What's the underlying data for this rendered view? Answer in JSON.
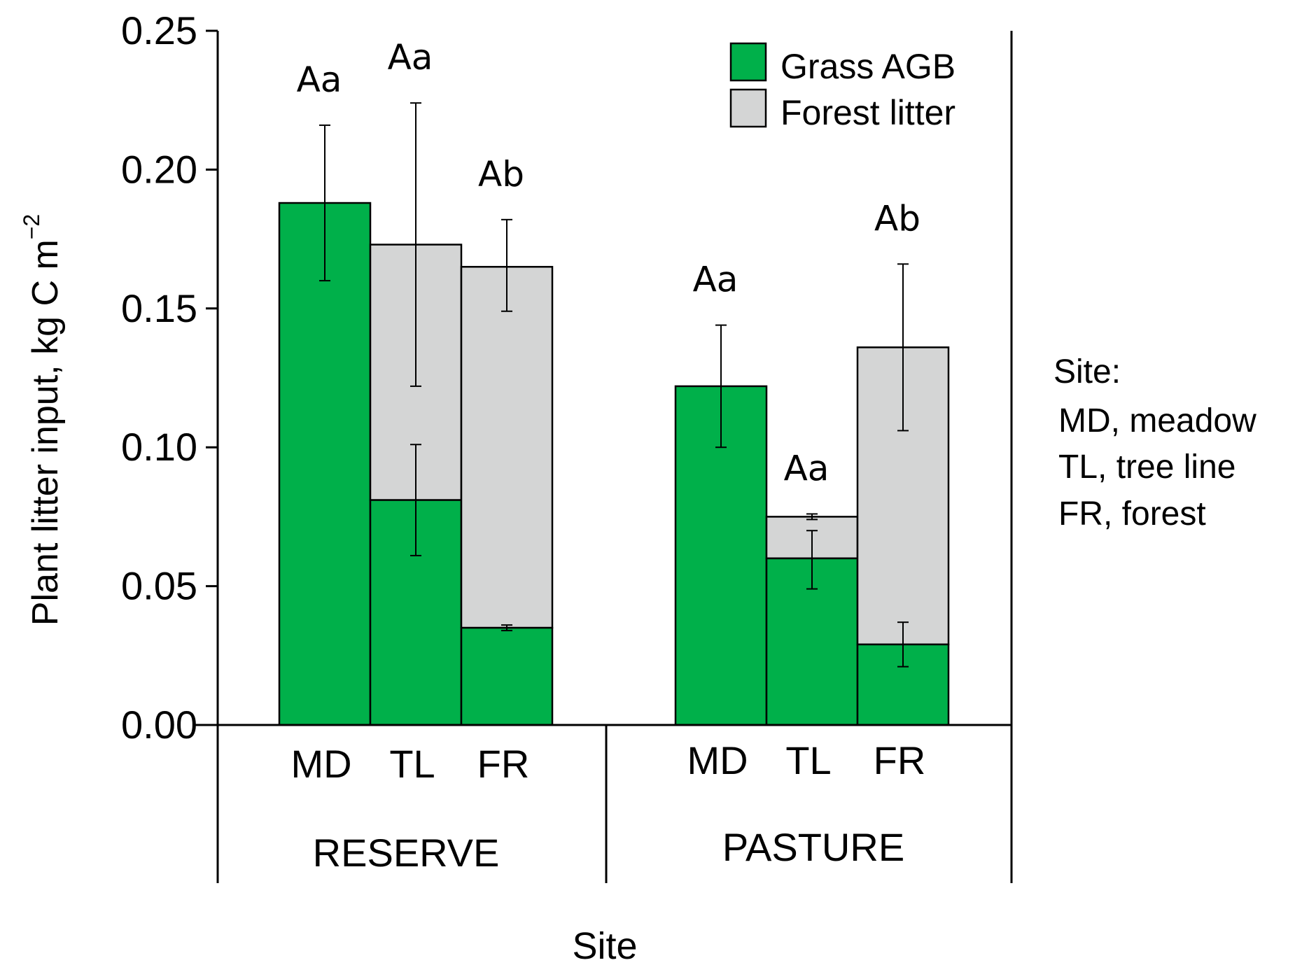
{
  "chart_data": {
    "type": "bar",
    "stacked": true,
    "ylabel": "Plant litter input, kg C m",
    "ylabel_superscript": "−2",
    "xlabel": "Site",
    "ylim": [
      0,
      0.25
    ],
    "yticks": [
      "0.00",
      "0.05",
      "0.10",
      "0.15",
      "0.20",
      "0.25"
    ],
    "groups": [
      {
        "name": "RESERVE",
        "sites": [
          {
            "label": "MD",
            "grass": 0.188,
            "grass_err": [
              0.16,
              0.216
            ],
            "total": 0.188,
            "total_err": null,
            "letters": "Aa"
          },
          {
            "label": "TL",
            "grass": 0.081,
            "grass_err": [
              0.061,
              0.101
            ],
            "total": 0.173,
            "total_err": [
              0.122,
              0.224
            ],
            "letters": "Aa"
          },
          {
            "label": "FR",
            "grass": 0.035,
            "grass_err": [
              0.034,
              0.036
            ],
            "total": 0.165,
            "total_err": [
              0.149,
              0.182
            ],
            "letters": "Ab"
          }
        ]
      },
      {
        "name": "PASTURE",
        "sites": [
          {
            "label": "MD",
            "grass": 0.122,
            "grass_err": [
              0.1,
              0.144
            ],
            "total": 0.122,
            "total_err": null,
            "letters": "Aa"
          },
          {
            "label": "TL",
            "grass": 0.06,
            "grass_err": [
              0.049,
              0.07
            ],
            "total": 0.075,
            "total_err": [
              0.074,
              0.076
            ],
            "letters": "Aa"
          },
          {
            "label": "FR",
            "grass": 0.029,
            "grass_err": [
              0.021,
              0.037
            ],
            "total": 0.136,
            "total_err": [
              0.106,
              0.166
            ],
            "letters": "Ab"
          }
        ]
      }
    ],
    "series": [
      {
        "name": "Grass AGB",
        "color": "#00b04a"
      },
      {
        "name": "Forest litter",
        "color": "#d4d5d5"
      }
    ],
    "legend_position": "top-right",
    "site_key": {
      "title": "Site:",
      "entries": [
        "MD, meadow",
        "TL, tree line",
        "FR, forest"
      ]
    }
  }
}
